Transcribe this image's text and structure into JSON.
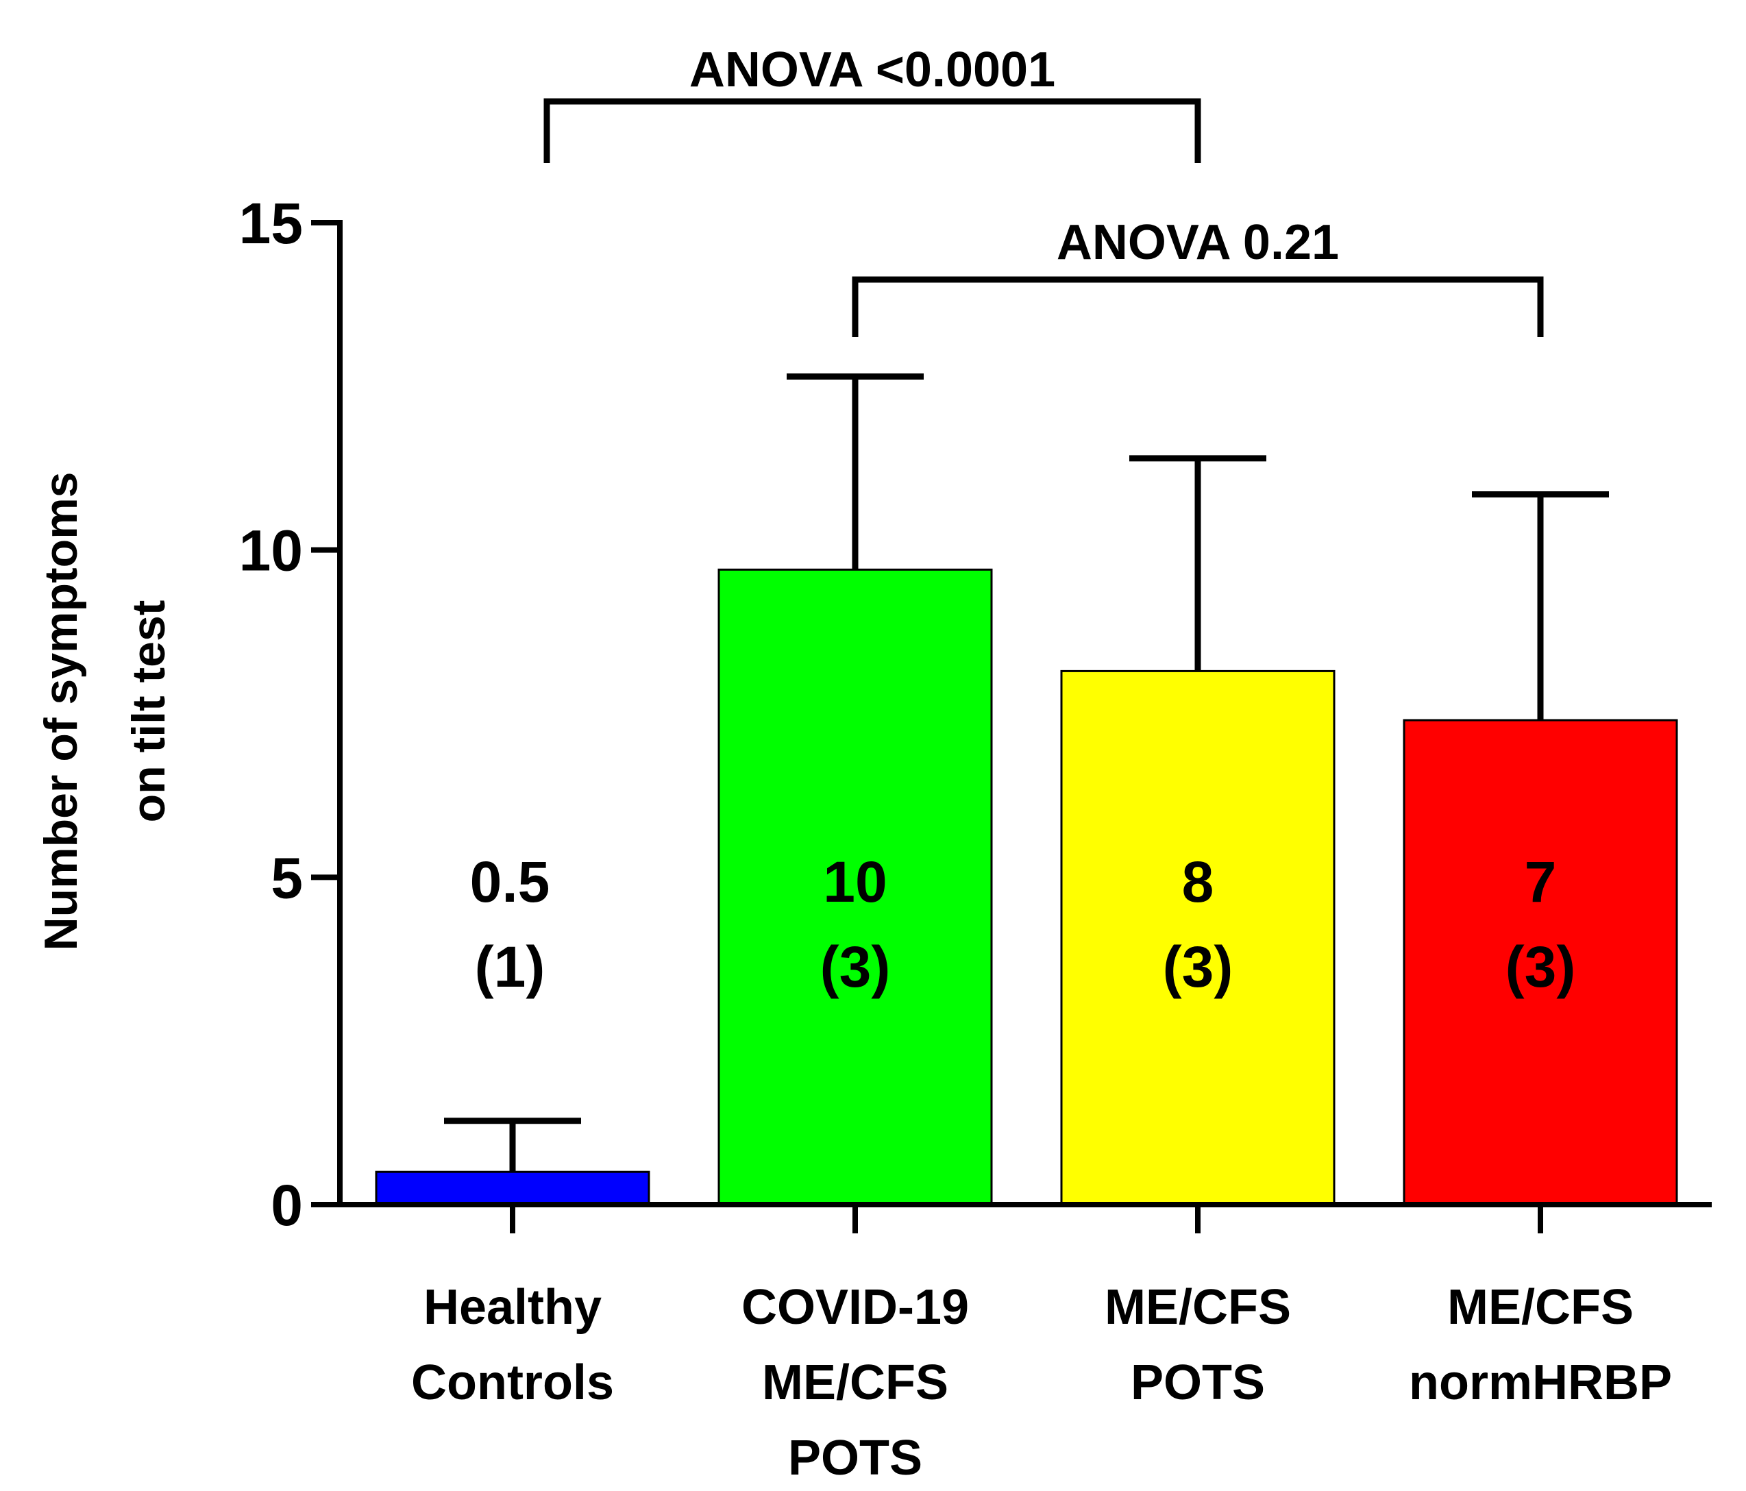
{
  "chart_data": {
    "type": "bar",
    "ylabel_line1": "Number of symptoms",
    "ylabel_line2": "on tilt test",
    "xlabel": "",
    "ylim": [
      0,
      15
    ],
    "yticks": [
      "0",
      "5",
      "10",
      "15"
    ],
    "categories": [
      {
        "lines": [
          "Healthy",
          "Controls"
        ]
      },
      {
        "lines": [
          "COVID-19",
          "ME/CFS",
          "POTS"
        ]
      },
      {
        "lines": [
          "ME/CFS",
          "POTS"
        ]
      },
      {
        "lines": [
          "ME/CFS",
          "normHRBP"
        ]
      }
    ],
    "bars": [
      {
        "value": 0.5,
        "error": 0.78,
        "color": "#0000ff",
        "label_mean": "0.5",
        "label_sd": "(1)"
      },
      {
        "value": 9.7,
        "error": 2.95,
        "color": "#00ff00",
        "label_mean": "10",
        "label_sd": "(3)"
      },
      {
        "value": 8.15,
        "error": 3.25,
        "color": "#ffff00",
        "label_mean": "8",
        "label_sd": "(3)"
      },
      {
        "value": 7.4,
        "error": 3.45,
        "color": "#ff0000",
        "label_mean": "7",
        "label_sd": "(3)"
      }
    ],
    "annotations": [
      {
        "text": "ANOVA <0.0001",
        "from_bar": 0,
        "to_bar": 2
      },
      {
        "text": "ANOVA 0.21",
        "from_bar": 1,
        "to_bar": 3
      }
    ]
  }
}
